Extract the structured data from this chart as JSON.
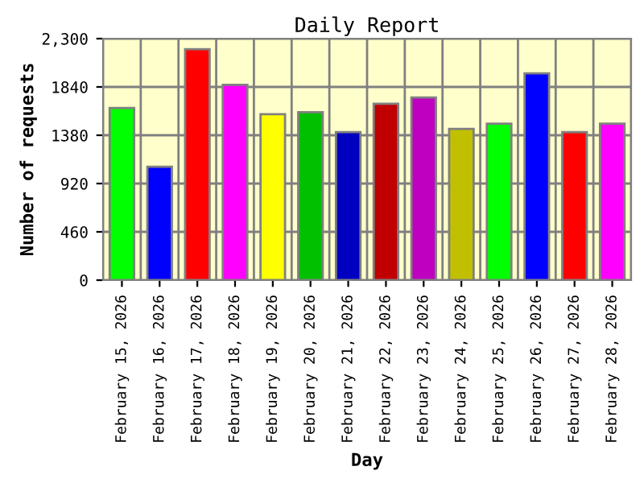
{
  "chart_data": {
    "type": "bar",
    "title": "Daily Report",
    "xlabel": "Day",
    "ylabel": "Number of requests",
    "categories": [
      "February 15, 2026",
      "February 16, 2026",
      "February 17, 2026",
      "February 18, 2026",
      "February 19, 2026",
      "February 20, 2026",
      "February 21, 2026",
      "February 22, 2026",
      "February 23, 2026",
      "February 24, 2026",
      "February 25, 2026",
      "February 26, 2026",
      "February 27, 2026",
      "February 28, 2026"
    ],
    "values": [
      1640,
      1080,
      2200,
      1860,
      1580,
      1600,
      1410,
      1680,
      1740,
      1440,
      1490,
      1970,
      1410,
      1490
    ],
    "colors": [
      "#00ff00",
      "#0000ff",
      "#ff0000",
      "#ff00ff",
      "#ffff00",
      "#00c000",
      "#0000c0",
      "#c00000",
      "#c000c0",
      "#c0c000",
      "#00ff00",
      "#0000ff",
      "#ff0000",
      "#ff00ff"
    ],
    "ylim": [
      0,
      2300
    ],
    "yticks": [
      0,
      460,
      920,
      1380,
      1840,
      {
        "value": 2300,
        "label": "2,300"
      }
    ],
    "grid": true
  }
}
